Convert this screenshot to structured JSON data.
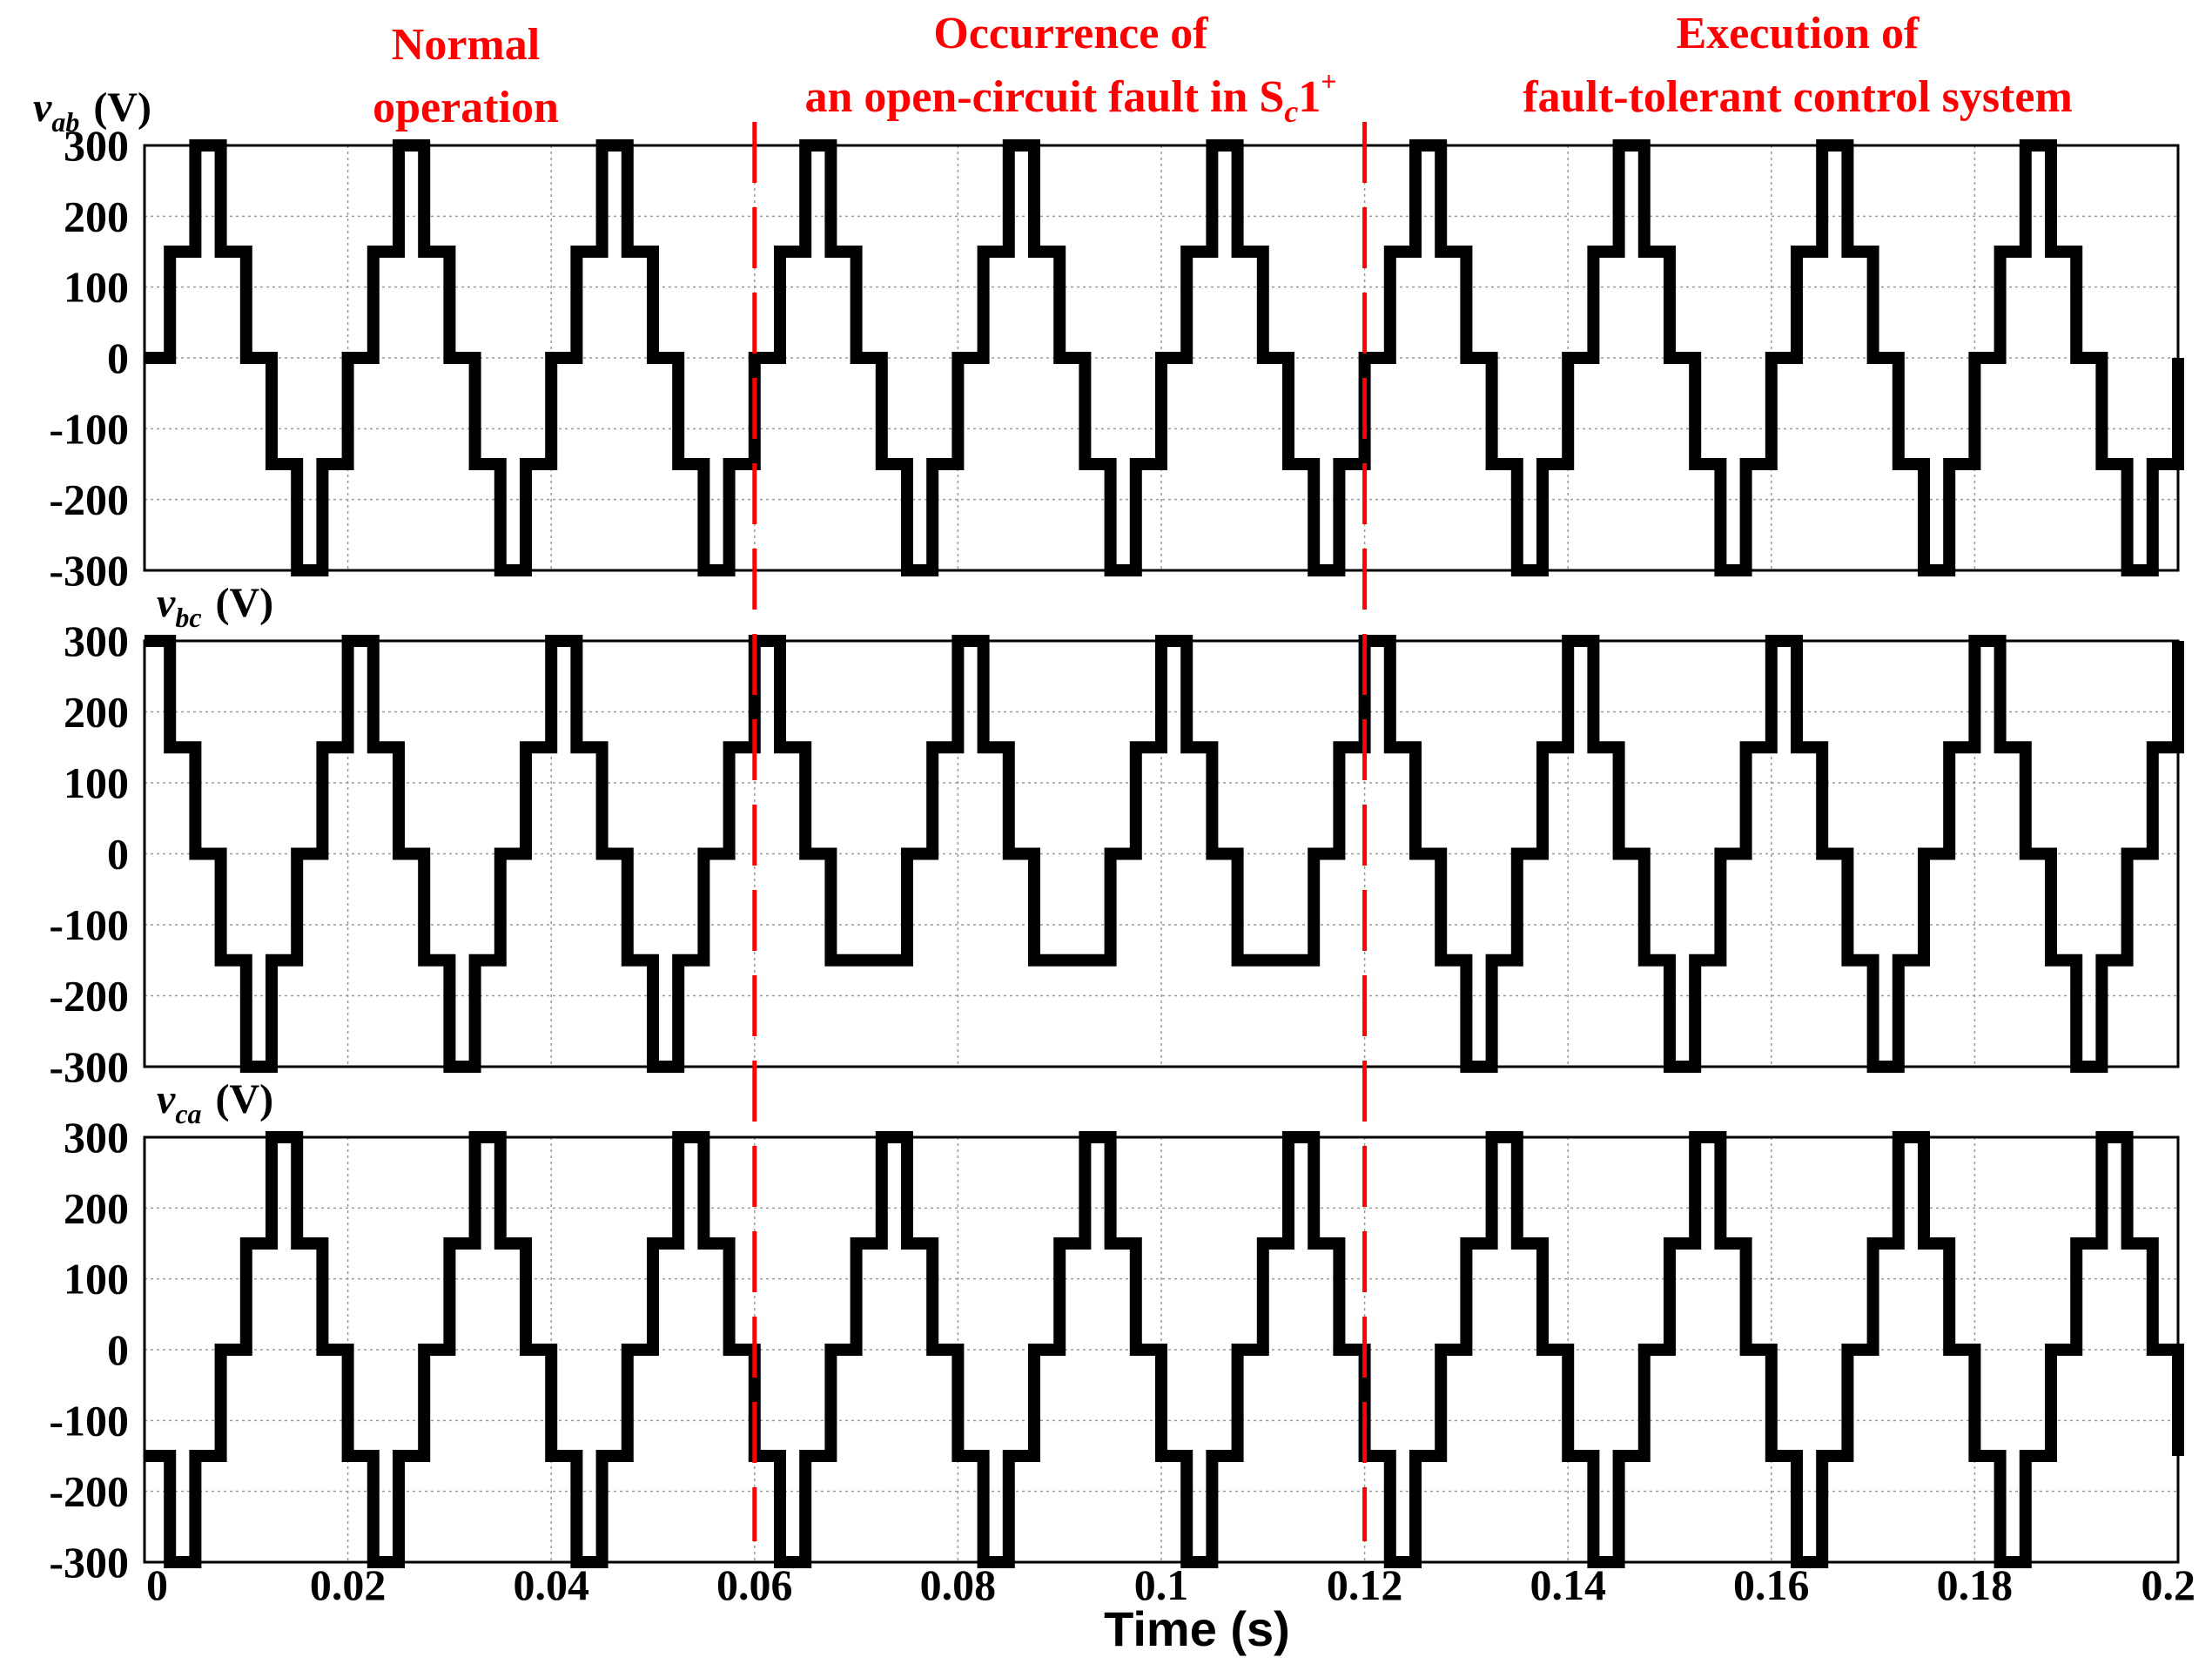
{
  "chart_data": {
    "type": "line",
    "x_range": [
      0,
      0.2
    ],
    "x_ticks": [
      "0",
      "0.02",
      "0.04",
      "0.06",
      "0.08",
      "0.1",
      "0.12",
      "0.14",
      "0.16",
      "0.18",
      "0.2"
    ],
    "x_tick_values": [
      0,
      0.02,
      0.04,
      0.06,
      0.08,
      0.1,
      0.12,
      0.14,
      0.16,
      0.18,
      0.2
    ],
    "xlabel": "Time (s)",
    "grid": true,
    "fundamental_frequency_hz": 50,
    "step_levels": [
      0,
      150,
      300,
      150,
      0,
      -150,
      -300,
      -150
    ],
    "events": [
      {
        "x": 0.06,
        "color": "#ff0000",
        "style": "dashed"
      },
      {
        "x": 0.12,
        "color": "#ff0000",
        "style": "dashed"
      }
    ],
    "annotations": [
      {
        "lines": [
          "Normal",
          "operation"
        ]
      },
      {
        "lines": [
          "Occurrence of",
          "an open-circuit fault in S",
          "c",
          "1",
          "+"
        ]
      },
      {
        "lines": [
          "Execution of",
          "fault-tolerant control system"
        ]
      }
    ],
    "panels": [
      {
        "series": "v",
        "subscript": "ab",
        "unit": "(V)",
        "ylim": [
          -300,
          300
        ],
        "y_ticks": [
          "300",
          "200",
          "100",
          "0",
          "-100",
          "-200",
          "-300"
        ],
        "y_tick_values": [
          300,
          200,
          100,
          0,
          -100,
          -200,
          -300
        ],
        "phase_deg": 0,
        "fault_window": [
          0.06,
          0.12
        ],
        "fault_effect": "none"
      },
      {
        "series": "v",
        "subscript": "bc",
        "unit": "(V)",
        "ylim": [
          -300,
          300
        ],
        "y_ticks": [
          "300",
          "200",
          "100",
          "0",
          "-100",
          "-200",
          "-300"
        ],
        "y_tick_values": [
          300,
          200,
          100,
          0,
          -100,
          -200,
          -300
        ],
        "phase_deg": 120,
        "fault_window": [
          0.06,
          0.12
        ],
        "fault_effect": "negative_peak_clipped_to_-150"
      },
      {
        "series": "v",
        "subscript": "ca",
        "unit": "(V)",
        "ylim": [
          -300,
          300
        ],
        "y_ticks": [
          "300",
          "200",
          "100",
          "0",
          "-100",
          "-200",
          "-300"
        ],
        "y_tick_values": [
          300,
          200,
          100,
          0,
          -100,
          -200,
          -300
        ],
        "phase_deg": 240,
        "fault_window": [
          0.06,
          0.12
        ],
        "fault_effect": "none"
      }
    ]
  }
}
